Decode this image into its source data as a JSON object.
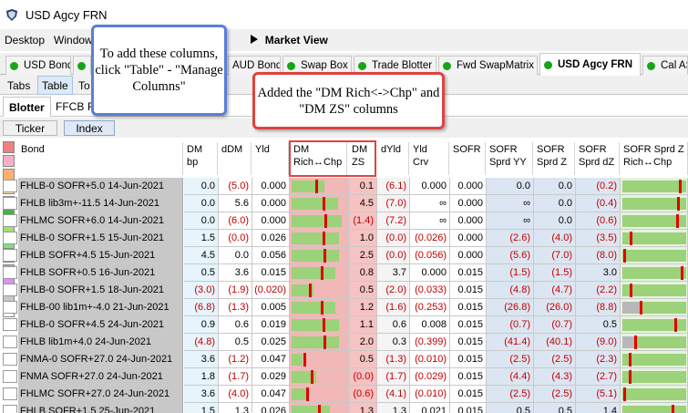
{
  "window": {
    "title": "USD Agcy FRN",
    "icon": "shield-icon"
  },
  "menu": {
    "items": [
      "Desktop",
      "Window"
    ],
    "play_icon": "play-triangle-icon",
    "market_view": "Market View"
  },
  "tabs": [
    {
      "label": "USD Bond"
    },
    {
      "label": ""
    },
    {
      "label": "AUD Bond"
    },
    {
      "label": "Swap Box"
    },
    {
      "label": "Trade Blotter"
    },
    {
      "label": "Fwd SwapMatrix"
    },
    {
      "label": "USD Agcy FRN"
    },
    {
      "label": "Cal ASW"
    }
  ],
  "subtabs": [
    "Tabs",
    "Table",
    "To"
  ],
  "row3": {
    "blotter": "Blotter",
    "ffcb": "FFCB",
    "f": "F"
  },
  "row4": {
    "ticker": "Ticker",
    "index": "Index"
  },
  "callouts": {
    "manage": "To add these columns, click \"Table\" - \"Manage Columns\"",
    "added": "Added the \"DM Rich<->Chp\" and \"DM ZS\" columns"
  },
  "swatch_colors": [
    "#f08080",
    "#f8b0c8",
    "#ffb070",
    "#ffe0a0",
    "#ffff60",
    "#30c030",
    "#a0e070",
    "#80e080",
    "#80c0f0",
    "#b0a0e0",
    "#e090f0",
    "#c8c8c8",
    "#ffffff"
  ],
  "columns": [
    "Bond",
    "DM bp",
    "dDM",
    "Yld",
    "DM Rich↔Chp",
    "DM ZS",
    "dYld",
    "Yld Crv",
    "SOFR",
    "SOFR Sprd YY",
    "SOFR Sprd Z",
    "SOFR Sprd dZ",
    "SOFR Sprd Z Rich↔Chp"
  ],
  "column_headers": {
    "bond": "Bond",
    "dm": [
      "DM",
      "bp"
    ],
    "ddm": "dDM",
    "yld": "Yld",
    "dmrich": [
      "DM",
      "Rich↔Chp"
    ],
    "dmzs": [
      "DM",
      "ZS"
    ],
    "dyld": "dYld",
    "yldcrv": [
      "Yld",
      "Crv"
    ],
    "sofr": "SOFR",
    "sofryy": [
      "SOFR",
      "Sprd YY"
    ],
    "sofrz": [
      "SOFR",
      "Sprd Z"
    ],
    "sofrdz": [
      "SOFR",
      "Sprd dZ"
    ],
    "sofrrich": [
      "SOFR Sprd Z",
      "Rich↔Chp"
    ]
  },
  "rows": [
    {
      "bond": "FHLB-0 SOFR+5.0 14-Jun-2021",
      "dm": "0.0",
      "ddm": "(5.0)",
      "yld": "0.000",
      "zs": "0.1",
      "dyld": "(6.1)",
      "crv": "0.000",
      "sofr": "0.000",
      "yy": "0.0",
      "z": "0.0",
      "dz": "(0.2)",
      "dmrich": 0.6,
      "zrich": 0.93
    },
    {
      "bond": "FHLB lib3m+-11.5 14-Jun-2021",
      "dm": "0.0",
      "ddm": "5.6",
      "yld": "0.000",
      "zs": "4.5",
      "dyld": "(7.0)",
      "crv": "∞",
      "sofr": "0.000",
      "yy": "∞",
      "z": "0.0",
      "dz": "(0.4)",
      "dmrich": 0.85,
      "zrich": 0.9
    },
    {
      "bond": "FHLMC SOFR+6.0 14-Jun-2021",
      "dm": "0.0",
      "ddm": "(6.0)",
      "yld": "0.000",
      "zs": "(1.4)",
      "dyld": "(7.2)",
      "crv": "∞",
      "sofr": "0.000",
      "yy": "∞",
      "z": "0.0",
      "dz": "(0.6)",
      "dmrich": 0.92,
      "zrich": 0.88
    },
    {
      "bond": "FHLB-0 SOFR+1.5 15-Jun-2021",
      "dm": "1.5",
      "ddm": "(0.0)",
      "yld": "0.026",
      "zs": "1.0",
      "dyld": "(0.0)",
      "crv": "(0.026)",
      "sofr": "0.000",
      "yy": "(2.6)",
      "z": "(4.0)",
      "dz": "(3.5)",
      "dmrich": 0.86,
      "zrich": 0.12
    },
    {
      "bond": "FHLB SOFR+4.5 15-Jun-2021",
      "dm": "4.5",
      "ddm": "0.0",
      "yld": "0.056",
      "zs": "2.5",
      "dyld": "(0.0)",
      "crv": "(0.056)",
      "sofr": "0.000",
      "yy": "(5.6)",
      "z": "(7.0)",
      "dz": "(8.0)",
      "dmrich": 0.87,
      "zrich": 0.01
    },
    {
      "bond": "FHLB SOFR+0.5 16-Jun-2021",
      "dm": "0.5",
      "ddm": "3.6",
      "yld": "0.015",
      "zs": "0.8",
      "dyld": "3.7",
      "crv": "0.000",
      "sofr": "0.015",
      "yy": "(1.5)",
      "z": "(1.5)",
      "dz": "3.0",
      "dmrich": 0.8,
      "zrich": 0.96
    },
    {
      "bond": "FHLB-0 SOFR+1.5 18-Jun-2021",
      "dm": "(3.0)",
      "ddm": "(1.9)",
      "yld": "(0.020)",
      "zs": "0.5",
      "dyld": "(2.0)",
      "crv": "(0.033)",
      "sofr": "0.015",
      "yy": "(4.8)",
      "z": "(4.7)",
      "dz": "(2.2)",
      "dmrich": 0.4,
      "zrich": 0.12
    },
    {
      "bond": "FHLB-00 lib1m+-4.0 21-Jun-2021",
      "dm": "(6.8)",
      "ddm": "(1.3)",
      "yld": "0.005",
      "zs": "1.2",
      "dyld": "(1.6)",
      "crv": "(0.253)",
      "sofr": "0.015",
      "yy": "(26.8)",
      "z": "(26.0)",
      "dz": "(8.8)",
      "dmrich": 0.8,
      "zrich": 0.28
    },
    {
      "bond": "FHLB-0 SOFR+4.5 24-Jun-2021",
      "dm": "0.9",
      "ddm": "0.6",
      "yld": "0.019",
      "zs": "1.1",
      "dyld": "0.6",
      "crv": "0.008",
      "sofr": "0.015",
      "yy": "(0.7)",
      "z": "(0.7)",
      "dz": "0.5",
      "dmrich": 0.86,
      "zrich": 0.85
    },
    {
      "bond": "FHLB lib1m+4.0 24-Jun-2021",
      "dm": "(4.8)",
      "ddm": "0.5",
      "yld": "0.025",
      "zs": "2.0",
      "dyld": "0.3",
      "crv": "(0.399)",
      "sofr": "0.015",
      "yy": "(41.4)",
      "z": "(40.1)",
      "dz": "(9.0)",
      "dmrich": 0.87,
      "zrich": 0.2
    },
    {
      "bond": "FNMA-0 SOFR+27.0 24-Jun-2021",
      "dm": "3.6",
      "ddm": "(1.2)",
      "yld": "0.047",
      "zs": "0.5",
      "dyld": "(1.3)",
      "crv": "(0.010)",
      "sofr": "0.015",
      "yy": "(2.5)",
      "z": "(2.5)",
      "dz": "(2.3)",
      "dmrich": 0.2,
      "zrich": 0.1
    },
    {
      "bond": "FNMA SOFR+27.0 24-Jun-2021",
      "dm": "1.8",
      "ddm": "(1.7)",
      "yld": "0.029",
      "zs": "(0.0)",
      "dyld": "(1.7)",
      "crv": "(0.029)",
      "sofr": "0.015",
      "yy": "(4.4)",
      "z": "(4.3)",
      "dz": "(2.7)",
      "dmrich": 0.45,
      "zrich": 0.1
    },
    {
      "bond": "FHLMC SOFR+27.0 24-Jun-2021",
      "dm": "3.6",
      "ddm": "(4.0)",
      "yld": "0.047",
      "zs": "(0.6)",
      "dyld": "(4.1)",
      "crv": "(0.010)",
      "sofr": "0.015",
      "yy": "(2.5)",
      "z": "(2.5)",
      "dz": "(5.1)",
      "dmrich": 0.3,
      "zrich": 0.02
    },
    {
      "bond": "FHLB SOFR+1.5 25-Jun-2021",
      "dm": "1.5",
      "ddm": "1.3",
      "yld": "0.026",
      "zs": "1.3",
      "dyld": "1.3",
      "crv": "0.021",
      "sofr": "0.015",
      "yy": "0.5",
      "z": "0.5",
      "dz": "1.4",
      "dmrich": 0.7,
      "zrich": 0.8
    }
  ]
}
